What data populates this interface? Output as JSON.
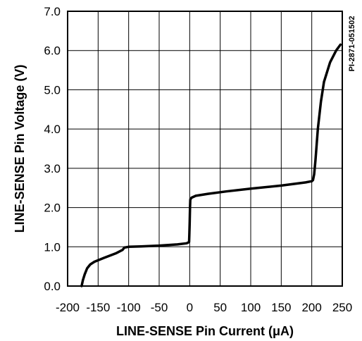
{
  "chart_data": {
    "type": "line",
    "xlabel": "LINE-SENSE Pin Current (μA)",
    "ylabel": "LINE-SENSE Pin Voltage (V)",
    "annotation": "PI-2871-051502",
    "xlim": [
      -200,
      250
    ],
    "ylim": [
      0,
      7
    ],
    "grid": true,
    "x_ticks": [
      "-200",
      "-150",
      "-100",
      "-50",
      "0",
      "50",
      "100",
      "150",
      "200",
      "250"
    ],
    "y_ticks": [
      "0.0",
      "1.0",
      "2.0",
      "3.0",
      "4.0",
      "5.0",
      "6.0",
      "7.0"
    ],
    "series": [
      {
        "color": "#000000",
        "points": [
          [
            -177,
            0.0
          ],
          [
            -175,
            0.15
          ],
          [
            -172,
            0.3
          ],
          [
            -168,
            0.45
          ],
          [
            -163,
            0.55
          ],
          [
            -156,
            0.62
          ],
          [
            -140,
            0.72
          ],
          [
            -120,
            0.84
          ],
          [
            -110,
            0.92
          ],
          [
            -107,
            0.98
          ],
          [
            -100,
            1.0
          ],
          [
            -80,
            1.01
          ],
          [
            -50,
            1.03
          ],
          [
            -20,
            1.06
          ],
          [
            -5,
            1.09
          ],
          [
            -1,
            1.12
          ],
          [
            -0.5,
            1.35
          ],
          [
            0,
            1.6
          ],
          [
            0.5,
            2.0
          ],
          [
            1,
            2.2
          ],
          [
            3,
            2.25
          ],
          [
            10,
            2.3
          ],
          [
            30,
            2.35
          ],
          [
            60,
            2.41
          ],
          [
            100,
            2.48
          ],
          [
            150,
            2.56
          ],
          [
            190,
            2.64
          ],
          [
            200,
            2.67
          ],
          [
            202,
            2.7
          ],
          [
            204,
            2.85
          ],
          [
            206,
            3.2
          ],
          [
            210,
            4.0
          ],
          [
            215,
            4.7
          ],
          [
            220,
            5.2
          ],
          [
            230,
            5.7
          ],
          [
            240,
            6.0
          ],
          [
            247,
            6.15
          ]
        ]
      }
    ]
  }
}
